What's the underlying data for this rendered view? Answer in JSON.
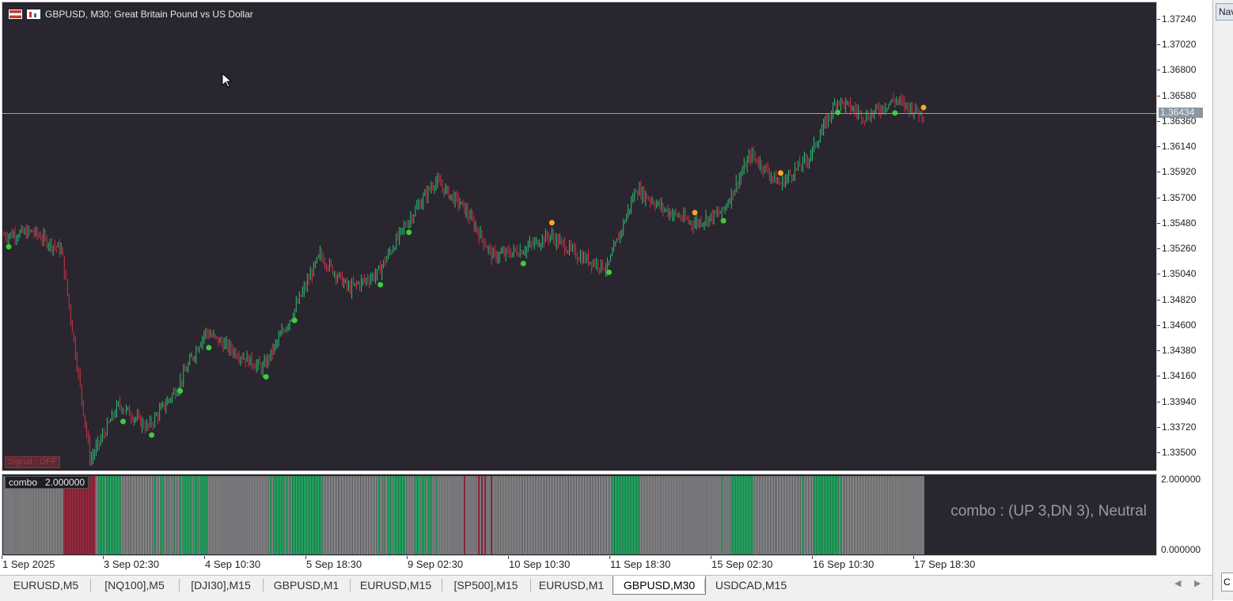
{
  "chart": {
    "symbol_title": "GBPUSD, M30:  Great Britain Pound vs US Dollar",
    "current_price": "1.36434",
    "signal_label": "Signal : OFF",
    "price_axis": [
      "1.37240",
      "1.37020",
      "1.36800",
      "1.36580",
      "1.36360",
      "1.36140",
      "1.35920",
      "1.35700",
      "1.35480",
      "1.35260",
      "1.35040",
      "1.34820",
      "1.34600",
      "1.34380",
      "1.34160",
      "1.33940",
      "1.33720",
      "1.33500"
    ],
    "time_axis": [
      "1 Sep 2025",
      "3 Sep 02:30",
      "4 Sep 10:30",
      "5 Sep 18:30",
      "9 Sep 02:30",
      "10 Sep 10:30",
      "11 Sep 18:30",
      "15 Sep 02:30",
      "16 Sep 10:30",
      "17 Sep 18:30"
    ],
    "colors": {
      "background": "#29262f",
      "bull": "#2fbf71",
      "bear": "#d0304a",
      "up_arrow": "#3ccb3c",
      "down_arrow": "#f5a623",
      "hist_neutral": "#9a9a9a",
      "hist_up": "#1fc46a",
      "hist_down": "#b4263e"
    }
  },
  "indicator": {
    "label": "combo   2.000000",
    "status": "combo : (UP 3,DN 3), Neutral",
    "axis": [
      "2.000000",
      "0.000000"
    ]
  },
  "navigator": {
    "tab_label": "Navigator",
    "bottom_label": "C"
  },
  "tabs": [
    {
      "label": "EURUSD,M5",
      "active": false
    },
    {
      "label": "[NQ100],M5",
      "active": false
    },
    {
      "label": "[DJI30],M15",
      "active": false
    },
    {
      "label": "GBPUSD,M1",
      "active": false
    },
    {
      "label": "EURUSD,M15",
      "active": false
    },
    {
      "label": "[SP500],M15",
      "active": false
    },
    {
      "label": "EURUSD,M1",
      "active": false
    },
    {
      "label": "GBPUSD,M30",
      "active": true
    },
    {
      "label": "USDCAD,M15",
      "active": false
    }
  ],
  "chart_data": {
    "type": "candlestick",
    "series_path_x": [
      "1 Sep 2025",
      "1 Sep 2025",
      "2 Sep",
      "2 Sep",
      "2 Sep",
      "3 Sep 02:30",
      "3 Sep",
      "4 Sep",
      "4 Sep 10:30",
      "4 Sep",
      "5 Sep",
      "5 Sep 18:30",
      "5 Sep",
      "8 Sep",
      "8 Sep",
      "9 Sep 02:30",
      "9 Sep",
      "9 Sep",
      "10 Sep",
      "10 Sep 10:30",
      "10 Sep",
      "11 Sep",
      "11 Sep 18:30",
      "11 Sep",
      "12 Sep",
      "12 Sep",
      "15 Sep 02:30",
      "15 Sep",
      "15 Sep",
      "16 Sep 10:30",
      "16 Sep",
      "17 Sep",
      "17 Sep 18:30"
    ],
    "series_path_y": [
      1.3538,
      1.3541,
      1.3525,
      1.3344,
      1.3392,
      1.3372,
      1.3405,
      1.3455,
      1.3438,
      1.3423,
      1.3468,
      1.3521,
      1.3492,
      1.3505,
      1.3548,
      1.3585,
      1.3562,
      1.352,
      1.3525,
      1.3538,
      1.352,
      1.351,
      1.3578,
      1.356,
      1.3548,
      1.3558,
      1.3608,
      1.3582,
      1.3605,
      1.3655,
      1.364,
      1.3655,
      1.3642
    ],
    "ylim": [
      1.3335,
      1.3739
    ],
    "indicator_ylim": [
      0,
      2
    ]
  }
}
